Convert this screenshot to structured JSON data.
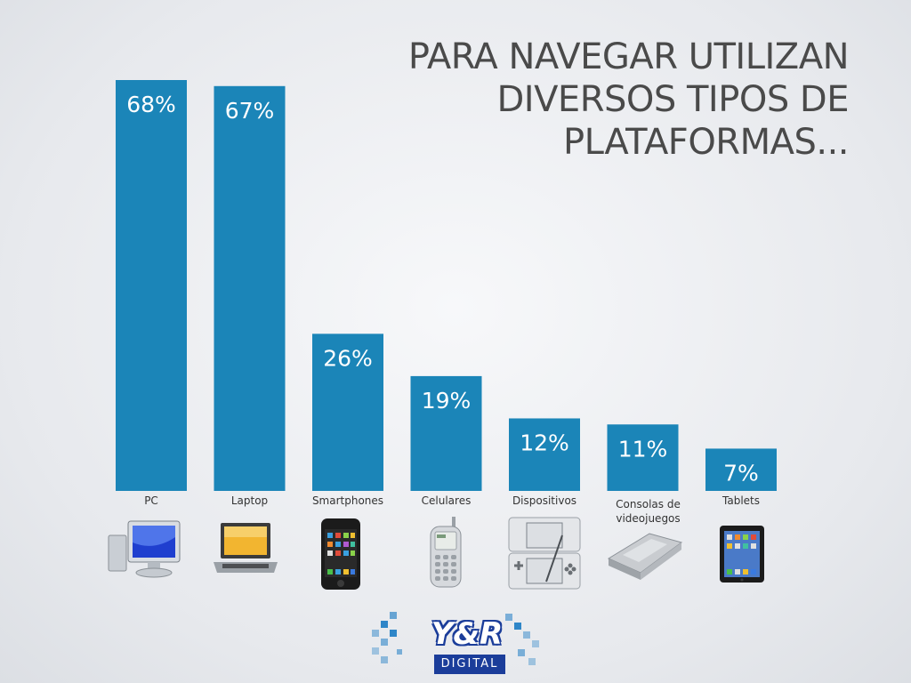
{
  "title": "PARA NAVEGAR UTILIZAN DIVERSOS TIPOS DE PLATAFORMAS...",
  "colors": {
    "bar": "#1b85b8",
    "title": "#4a4a4a",
    "logo": "#1b3d9a"
  },
  "chart_data": {
    "type": "bar",
    "categories": [
      "PC",
      "Laptop",
      "Smartphones",
      "Celulares",
      "Dispositivos",
      "Consolas de videojuegos",
      "Tablets"
    ],
    "values": [
      68,
      67,
      26,
      19,
      12,
      11,
      7
    ],
    "value_labels": [
      "68%",
      "67%",
      "26%",
      "19%",
      "12%",
      "11%",
      "7%"
    ],
    "ylim": [
      0,
      68
    ],
    "grid": false,
    "legend": "none"
  },
  "icons": [
    "pc-monitor-icon",
    "laptop-icon",
    "smartphone-icon",
    "cellphone-icon",
    "handheld-console-icon",
    "game-console-icon",
    "tablet-icon"
  ],
  "logo": {
    "main": "Y&R",
    "sub": "DIGITAL"
  }
}
